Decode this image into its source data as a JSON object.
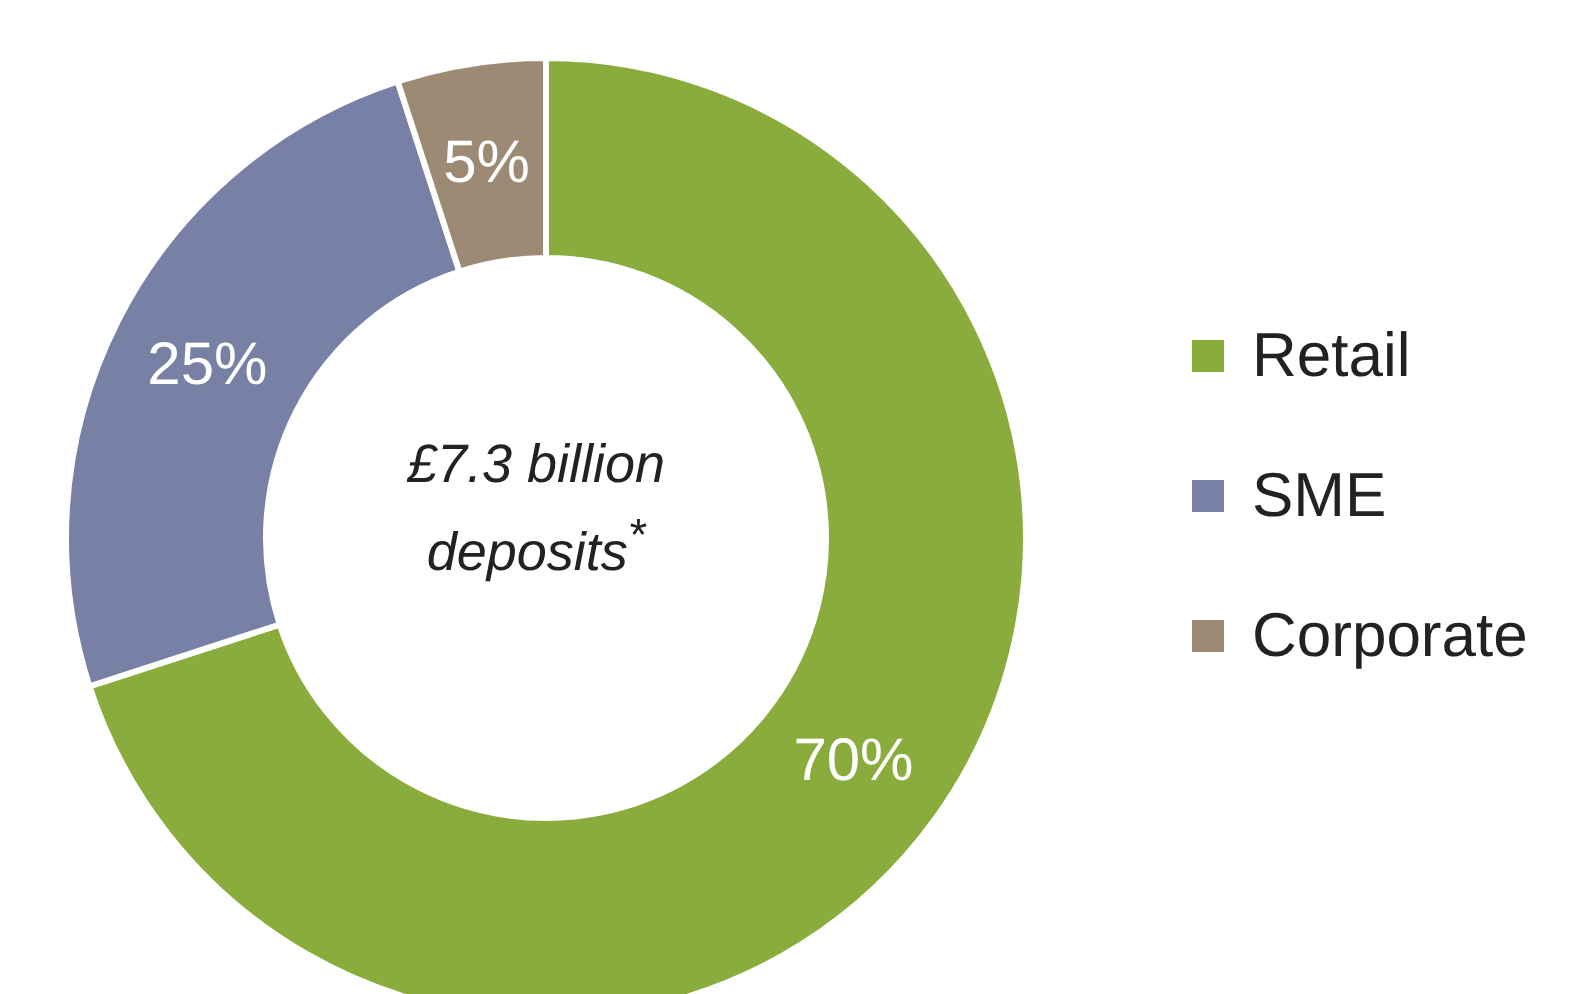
{
  "chart_data": {
    "type": "donut",
    "categories": [
      "Retail",
      "SME",
      "Corporate"
    ],
    "values": [
      70,
      25,
      5
    ],
    "colors": [
      "#8aac3c",
      "#7880a6",
      "#9c8a74"
    ],
    "value_labels": [
      "70%",
      "25%",
      "5%"
    ],
    "annotations": [
      "£7.3 billion deposits$^{*}$"
    ],
    "legend": "right"
  }
}
